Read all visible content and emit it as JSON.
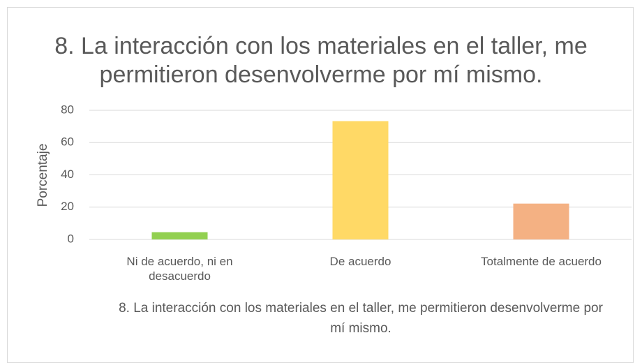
{
  "chart_data": {
    "type": "bar",
    "title": "8. La interacción con los materiales en el taller, me permitieron desenvolverme por mí mismo.",
    "x_label": "8. La interacción con los materiales en el taller, me permitieron desenvolverme por mí mismo.",
    "y_label": "Porcentaje",
    "categories": [
      "Ni de acuerdo, ni en desacuerdo",
      "De acuerdo",
      "Totalmente de acuerdo"
    ],
    "values": [
      4.5,
      73.3,
      22.2
    ],
    "colors": [
      "#92d050",
      "#ffd966",
      "#f4b183"
    ],
    "ylim": [
      0,
      80
    ],
    "yticks": [
      0,
      20,
      40,
      60,
      80
    ],
    "grid": true
  }
}
